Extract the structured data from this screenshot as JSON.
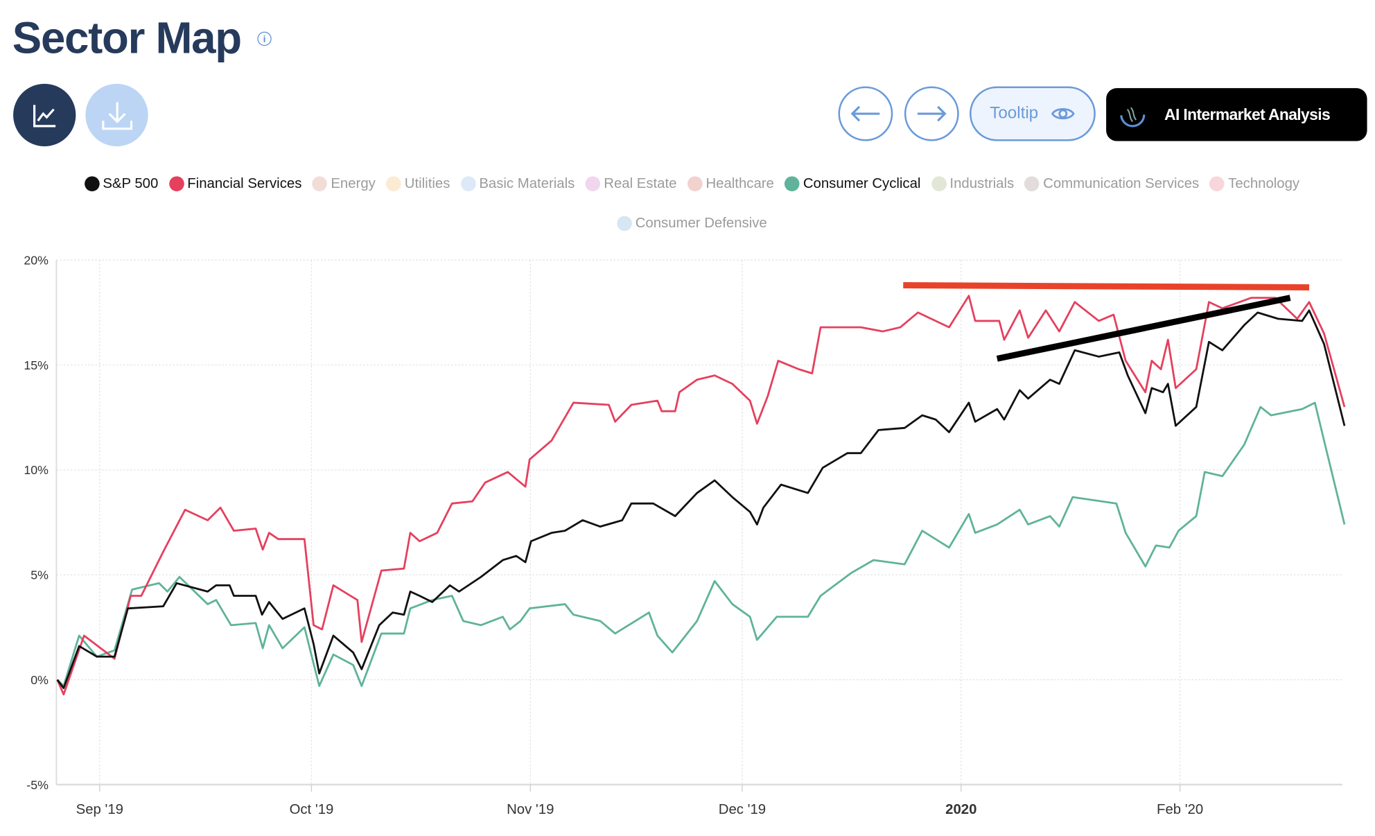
{
  "header": {
    "title": "Sector Map",
    "info_icon": "info-icon"
  },
  "toolbar": {
    "chart_button_icon": "line-chart-icon",
    "download_button_icon": "download-icon",
    "prev_icon": "arrow-left-icon",
    "next_icon": "arrow-right-icon",
    "tooltip_label": "Tooltip",
    "ai_label": "AI Intermarket Analysis"
  },
  "legend": [
    {
      "label": "S&P 500",
      "color": "#111111",
      "active": true
    },
    {
      "label": "Financial Services",
      "color": "#e5405e",
      "active": true
    },
    {
      "label": "Energy",
      "color": "#f2ddd6",
      "active": false
    },
    {
      "label": "Utilities",
      "color": "#fbebd2",
      "active": false
    },
    {
      "label": "Basic Materials",
      "color": "#dde8f8",
      "active": false
    },
    {
      "label": "Real Estate",
      "color": "#f1d6f0",
      "active": false
    },
    {
      "label": "Healthcare",
      "color": "#f1d2cd",
      "active": false
    },
    {
      "label": "Consumer Cyclical",
      "color": "#5fb39a",
      "active": true
    },
    {
      "label": "Industrials",
      "color": "#e2e6d6",
      "active": false
    },
    {
      "label": "Communication Services",
      "color": "#e3dcdc",
      "active": false
    },
    {
      "label": "Technology",
      "color": "#f8d6dc",
      "active": false
    },
    {
      "label": "Consumer Defensive",
      "color": "#d6e7f3",
      "active": false
    }
  ],
  "chart_data": {
    "type": "line",
    "x_unit": "days since 2019-08-26",
    "xlim": [
      0,
      182
    ],
    "ylim": [
      -5,
      20
    ],
    "yticks": [
      {
        "v": 20,
        "label": "20%"
      },
      {
        "v": 15,
        "label": "15%"
      },
      {
        "v": 10,
        "label": "10%"
      },
      {
        "v": 5,
        "label": "5%"
      },
      {
        "v": 0,
        "label": "0%"
      },
      {
        "v": -5,
        "label": "-5%"
      }
    ],
    "xticks": [
      {
        "v": 6,
        "label": "Sep '19",
        "bold": false
      },
      {
        "v": 36,
        "label": "Oct '19",
        "bold": false
      },
      {
        "v": 67,
        "label": "Nov '19",
        "bold": false
      },
      {
        "v": 97,
        "label": "Dec '19",
        "bold": false
      },
      {
        "v": 128,
        "label": "2020",
        "bold": true
      },
      {
        "v": 159,
        "label": "Feb '20",
        "bold": false
      }
    ],
    "grid": true,
    "series": [
      {
        "name": "Consumer Cyclical",
        "color": "#5fb39a",
        "points": [
          [
            0,
            0
          ],
          [
            0.9,
            -0.3
          ],
          [
            3.1,
            2.1
          ],
          [
            5.6,
            1.1
          ],
          [
            8.1,
            1.4
          ],
          [
            10.6,
            4.3
          ],
          [
            14.4,
            4.6
          ],
          [
            15.6,
            4.2
          ],
          [
            17.3,
            4.9
          ],
          [
            21.3,
            3.6
          ],
          [
            22.5,
            3.8
          ],
          [
            24.6,
            2.6
          ],
          [
            28.1,
            2.7
          ],
          [
            29.1,
            1.5
          ],
          [
            30,
            2.6
          ],
          [
            31.9,
            1.5
          ],
          [
            35,
            2.5
          ],
          [
            37.1,
            -0.3
          ],
          [
            39.1,
            1.2
          ],
          [
            41.9,
            0.7
          ],
          [
            43.1,
            -0.3
          ],
          [
            45.9,
            2.2
          ],
          [
            49.1,
            2.2
          ],
          [
            50,
            3.4
          ],
          [
            53.1,
            3.8
          ],
          [
            55.9,
            4.0
          ],
          [
            57.5,
            2.8
          ],
          [
            60,
            2.6
          ],
          [
            63.1,
            3.0
          ],
          [
            64.1,
            2.4
          ],
          [
            65.6,
            2.8
          ],
          [
            66.9,
            3.4
          ],
          [
            71.9,
            3.6
          ],
          [
            73.1,
            3.1
          ],
          [
            76.9,
            2.8
          ],
          [
            79,
            2.2
          ],
          [
            83.8,
            3.2
          ],
          [
            85,
            2.1
          ],
          [
            87.1,
            1.3
          ],
          [
            90.6,
            2.8
          ],
          [
            93.1,
            4.7
          ],
          [
            95.6,
            3.6
          ],
          [
            98.1,
            3.0
          ],
          [
            99.1,
            1.9
          ],
          [
            101.9,
            3.0
          ],
          [
            106.3,
            3.0
          ],
          [
            108.1,
            4.0
          ],
          [
            112.5,
            5.1
          ],
          [
            115.6,
            5.7
          ],
          [
            120,
            5.5
          ],
          [
            122.5,
            7.1
          ],
          [
            126.3,
            6.3
          ],
          [
            129.1,
            7.9
          ],
          [
            130,
            7.0
          ],
          [
            133.1,
            7.4
          ],
          [
            136.3,
            8.1
          ],
          [
            137.5,
            7.4
          ],
          [
            140.6,
            7.8
          ],
          [
            141.9,
            7.3
          ],
          [
            143.8,
            8.7
          ],
          [
            150,
            8.4
          ],
          [
            151.3,
            7.0
          ],
          [
            154.1,
            5.4
          ],
          [
            155.6,
            6.4
          ],
          [
            157.5,
            6.3
          ],
          [
            158.8,
            7.1
          ],
          [
            161.3,
            7.8
          ],
          [
            162.5,
            9.9
          ],
          [
            165,
            9.7
          ],
          [
            168.1,
            11.2
          ],
          [
            170.4,
            13.0
          ],
          [
            171.9,
            12.6
          ],
          [
            176.3,
            12.9
          ],
          [
            178.1,
            13.2
          ],
          [
            179.4,
            11.4
          ],
          [
            182.3,
            7.4
          ]
        ]
      },
      {
        "name": "Financial Services",
        "color": "#e5405e",
        "points": [
          [
            0,
            0
          ],
          [
            0.9,
            -0.7
          ],
          [
            3.8,
            2.1
          ],
          [
            8.1,
            1.0
          ],
          [
            10.4,
            4.0
          ],
          [
            11.9,
            4.0
          ],
          [
            15,
            6.1
          ],
          [
            18.1,
            8.1
          ],
          [
            21.3,
            7.6
          ],
          [
            23.1,
            8.2
          ],
          [
            25,
            7.1
          ],
          [
            28.1,
            7.2
          ],
          [
            29.1,
            6.2
          ],
          [
            30,
            7.0
          ],
          [
            31.3,
            6.7
          ],
          [
            35,
            6.7
          ],
          [
            36.3,
            2.6
          ],
          [
            37.5,
            2.4
          ],
          [
            39.1,
            4.5
          ],
          [
            42.5,
            3.8
          ],
          [
            43.1,
            1.8
          ],
          [
            45.9,
            5.2
          ],
          [
            49.1,
            5.3
          ],
          [
            50,
            7.0
          ],
          [
            51.3,
            6.6
          ],
          [
            53.8,
            7.0
          ],
          [
            55.9,
            8.4
          ],
          [
            58.8,
            8.5
          ],
          [
            60.6,
            9.4
          ],
          [
            63.8,
            9.9
          ],
          [
            66.3,
            9.2
          ],
          [
            66.9,
            10.5
          ],
          [
            70,
            11.4
          ],
          [
            73.1,
            13.2
          ],
          [
            78.1,
            13.1
          ],
          [
            79,
            12.3
          ],
          [
            81.3,
            13.1
          ],
          [
            85,
            13.3
          ],
          [
            85.6,
            12.8
          ],
          [
            87.5,
            12.8
          ],
          [
            88.1,
            13.7
          ],
          [
            90.6,
            14.3
          ],
          [
            93.1,
            14.5
          ],
          [
            95.6,
            14.1
          ],
          [
            98.1,
            13.3
          ],
          [
            99.1,
            12.2
          ],
          [
            100.6,
            13.5
          ],
          [
            102.1,
            15.2
          ],
          [
            105,
            14.8
          ],
          [
            106.9,
            14.6
          ],
          [
            108.1,
            16.8
          ],
          [
            110.6,
            16.8
          ],
          [
            113.8,
            16.8
          ],
          [
            116.9,
            16.6
          ],
          [
            119.4,
            16.8
          ],
          [
            121.9,
            17.5
          ],
          [
            126.3,
            16.8
          ],
          [
            129.1,
            18.3
          ],
          [
            130,
            17.1
          ],
          [
            133.4,
            17.1
          ],
          [
            134.1,
            16.2
          ],
          [
            136.3,
            17.6
          ],
          [
            137.5,
            16.3
          ],
          [
            140,
            17.6
          ],
          [
            141.9,
            16.6
          ],
          [
            144.1,
            18.0
          ],
          [
            147.5,
            17.1
          ],
          [
            149.6,
            17.4
          ],
          [
            151.3,
            15.2
          ],
          [
            154.1,
            13.7
          ],
          [
            155,
            15.2
          ],
          [
            156.3,
            14.8
          ],
          [
            157.3,
            16.2
          ],
          [
            158.4,
            13.9
          ],
          [
            161.3,
            14.8
          ],
          [
            163.1,
            18.0
          ],
          [
            165,
            17.7
          ],
          [
            169.1,
            18.2
          ],
          [
            172.5,
            18.2
          ],
          [
            175.6,
            17.2
          ],
          [
            177.3,
            18.0
          ],
          [
            179.4,
            16.5
          ],
          [
            182.3,
            13.0
          ]
        ]
      },
      {
        "name": "S&P 500",
        "color": "#111111",
        "points": [
          [
            0,
            0
          ],
          [
            0.9,
            -0.4
          ],
          [
            3.1,
            1.6
          ],
          [
            5.6,
            1.1
          ],
          [
            8.1,
            1.1
          ],
          [
            10,
            3.4
          ],
          [
            15,
            3.5
          ],
          [
            16.9,
            4.6
          ],
          [
            21.3,
            4.2
          ],
          [
            22.5,
            4.5
          ],
          [
            24.4,
            4.5
          ],
          [
            25,
            4.0
          ],
          [
            28.1,
            4.0
          ],
          [
            29,
            3.1
          ],
          [
            30,
            3.7
          ],
          [
            31.9,
            2.9
          ],
          [
            35,
            3.4
          ],
          [
            36.3,
            1.7
          ],
          [
            37.1,
            0.3
          ],
          [
            39.1,
            2.1
          ],
          [
            41.9,
            1.3
          ],
          [
            43.1,
            0.5
          ],
          [
            45.6,
            2.6
          ],
          [
            47.5,
            3.2
          ],
          [
            49.1,
            3.1
          ],
          [
            50,
            4.2
          ],
          [
            51.3,
            4.0
          ],
          [
            53.1,
            3.7
          ],
          [
            55.6,
            4.5
          ],
          [
            56.9,
            4.2
          ],
          [
            60,
            4.9
          ],
          [
            63.1,
            5.7
          ],
          [
            65,
            5.9
          ],
          [
            66.3,
            5.6
          ],
          [
            67.1,
            6.6
          ],
          [
            70,
            7.0
          ],
          [
            71.9,
            7.1
          ],
          [
            74.4,
            7.6
          ],
          [
            76.9,
            7.3
          ],
          [
            80,
            7.6
          ],
          [
            81.3,
            8.4
          ],
          [
            84.4,
            8.4
          ],
          [
            87.5,
            7.8
          ],
          [
            90.6,
            8.9
          ],
          [
            93.1,
            9.5
          ],
          [
            95.6,
            8.7
          ],
          [
            98.1,
            8.0
          ],
          [
            99.1,
            7.4
          ],
          [
            100,
            8.2
          ],
          [
            102.5,
            9.3
          ],
          [
            106.3,
            8.9
          ],
          [
            108.4,
            10.1
          ],
          [
            111.9,
            10.8
          ],
          [
            113.8,
            10.8
          ],
          [
            116.3,
            11.9
          ],
          [
            120,
            12.0
          ],
          [
            122.5,
            12.6
          ],
          [
            124.4,
            12.4
          ],
          [
            126.3,
            11.8
          ],
          [
            129.1,
            13.2
          ],
          [
            130,
            12.3
          ],
          [
            133.1,
            12.9
          ],
          [
            134.1,
            12.4
          ],
          [
            136.3,
            13.8
          ],
          [
            137.5,
            13.4
          ],
          [
            140.6,
            14.3
          ],
          [
            141.9,
            14.1
          ],
          [
            144.1,
            15.7
          ],
          [
            147.5,
            15.4
          ],
          [
            150.4,
            15.6
          ],
          [
            151.6,
            14.5
          ],
          [
            154.1,
            12.7
          ],
          [
            155,
            13.9
          ],
          [
            156.6,
            13.7
          ],
          [
            157.3,
            14.1
          ],
          [
            158.4,
            12.1
          ],
          [
            161.3,
            13.0
          ],
          [
            163.1,
            16.1
          ],
          [
            165,
            15.7
          ],
          [
            168.1,
            16.9
          ],
          [
            170,
            17.5
          ],
          [
            172.9,
            17.2
          ],
          [
            176.3,
            17.1
          ],
          [
            177.3,
            17.6
          ],
          [
            179.4,
            16.0
          ],
          [
            182.3,
            12.1
          ]
        ]
      }
    ],
    "annotations": [
      {
        "type": "drawn-line",
        "color": "#e8432a",
        "from": [
          119.8,
          18.8
        ],
        "to": [
          177.3,
          18.7
        ]
      },
      {
        "type": "drawn-line",
        "color": "#000000",
        "from": [
          133.1,
          15.3
        ],
        "to": [
          174.6,
          18.2
        ]
      }
    ]
  }
}
